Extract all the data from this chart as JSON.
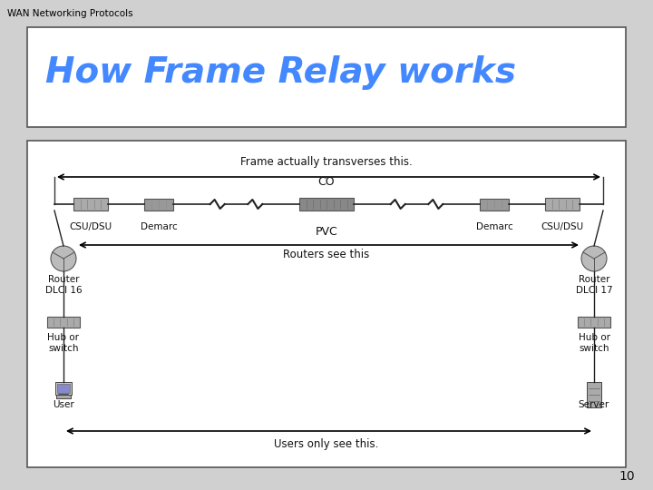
{
  "bg_color": "#d0d0d0",
  "title_box_color": "#ffffff",
  "diagram_box_color": "#ffffff",
  "title_text": "How Frame Relay works",
  "title_color": "#4488ff",
  "subtitle_text": "WAN Networking Protocols",
  "subtitle_color": "#000000",
  "page_number": "10",
  "frame_label": "Frame actually transverses this.",
  "co_label": "CO",
  "pvc_label": "PVC",
  "routers_see_label": "Routers see this",
  "users_see_label": "Users only see this.",
  "arrow_color": "#000000"
}
